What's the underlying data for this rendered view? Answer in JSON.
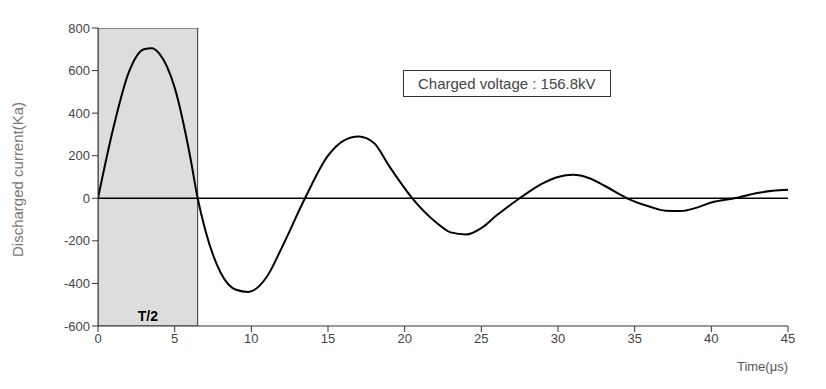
{
  "chart_data": {
    "type": "line",
    "annotation_box": "Charged voltage : 156.8kV",
    "x_label": "Time(μs)",
    "y_label": "Discharged current(Ka)",
    "x": [
      0,
      1,
      2,
      3,
      3.5,
      4,
      5,
      6,
      6.5,
      7,
      8,
      9,
      9.8,
      11,
      12,
      13.5,
      15,
      16,
      17,
      18,
      19,
      20.5,
      22,
      23,
      24,
      25,
      26,
      27.5,
      29,
      30,
      31,
      32,
      33,
      34.5,
      36,
      37,
      38,
      39,
      40,
      41.5,
      43,
      44,
      45
    ],
    "values": [
      0,
      330,
      590,
      700,
      705,
      680,
      520,
      200,
      0,
      -150,
      -350,
      -430,
      -440,
      -370,
      -230,
      0,
      200,
      270,
      290,
      260,
      150,
      0,
      -110,
      -160,
      -170,
      -140,
      -80,
      0,
      70,
      100,
      110,
      95,
      60,
      0,
      -40,
      -58,
      -60,
      -45,
      -20,
      0,
      25,
      35,
      40
    ],
    "color": "#000000",
    "xlim": [
      0,
      45
    ],
    "xticks": [
      0,
      5,
      10,
      15,
      20,
      25,
      30,
      35,
      40,
      45
    ],
    "ylim": [
      -600,
      800
    ],
    "yticks": [
      -600,
      -400,
      -200,
      0,
      200,
      400,
      600,
      800
    ],
    "grid": false,
    "shaded_region": {
      "label": "T/2",
      "x1": 0,
      "x2": 6.5
    }
  }
}
